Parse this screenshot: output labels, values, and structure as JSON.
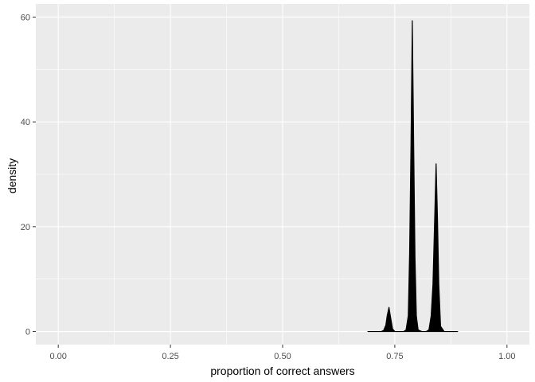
{
  "chart_data": {
    "type": "area",
    "title": "",
    "xlabel": "proportion of correct answers",
    "ylabel": "density",
    "xlim": [
      -0.05,
      1.05
    ],
    "ylim": [
      -2.5,
      62.5
    ],
    "x_ticks": [
      0.0,
      0.25,
      0.5,
      0.75,
      1.0
    ],
    "x_tick_labels": [
      "0.00",
      "0.25",
      "0.50",
      "0.75",
      "1.00"
    ],
    "y_ticks": [
      0,
      20,
      40,
      60
    ],
    "y_tick_labels": [
      "0",
      "20",
      "40",
      "60"
    ],
    "grid": true,
    "legend": "none",
    "series": [
      {
        "x": [
          0.69,
          0.72,
          0.725,
          0.73,
          0.733,
          0.737,
          0.74,
          0.745,
          0.75,
          0.76,
          0.77,
          0.775,
          0.78,
          0.783,
          0.786,
          0.789,
          0.792,
          0.795,
          0.798,
          0.802,
          0.81,
          0.82,
          0.826,
          0.831,
          0.835,
          0.839,
          0.842,
          0.845,
          0.848,
          0.852,
          0.86,
          0.87,
          0.89
        ],
        "y": [
          0,
          0,
          0.2,
          1.2,
          3,
          4.6,
          3,
          0.5,
          0,
          0,
          0,
          0.3,
          3,
          15,
          35,
          59.3,
          36,
          14,
          3,
          0.3,
          0,
          0,
          0.3,
          3,
          9,
          22,
          32,
          22,
          9,
          1,
          0,
          0,
          0
        ]
      }
    ],
    "colors": {
      "fill": "#000000",
      "panel": "#ebebeb",
      "grid": "#ffffff"
    }
  }
}
